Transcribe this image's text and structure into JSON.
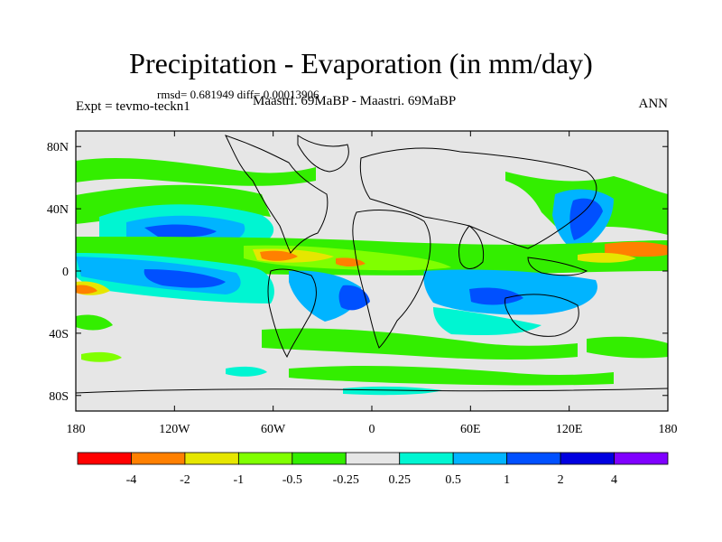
{
  "header": {
    "title": "Precipitation - Evaporation (in mm/day)",
    "stats": "rmsd= 0.681949 diff= 0.00013906",
    "experiment": "Expt = tevmo-teckn1",
    "comparison": "Maastri. 69MaBP - Maastri. 69MaBP",
    "season": "ANN"
  },
  "map": {
    "lon_range": [
      -180,
      180
    ],
    "lat_range": [
      -90,
      90
    ],
    "lat_ticks": [
      {
        "value": 80,
        "label": "80N"
      },
      {
        "value": 40,
        "label": "40N"
      },
      {
        "value": 0,
        "label": "0"
      },
      {
        "value": -40,
        "label": "40S"
      },
      {
        "value": -80,
        "label": "80S"
      }
    ],
    "lon_ticks": [
      {
        "value": -180,
        "label": "180"
      },
      {
        "value": -120,
        "label": "120W"
      },
      {
        "value": -60,
        "label": "60W"
      },
      {
        "value": 0,
        "label": "0"
      },
      {
        "value": 60,
        "label": "60E"
      },
      {
        "value": 120,
        "label": "120E"
      },
      {
        "value": 180,
        "label": "180"
      }
    ]
  },
  "colorbar": {
    "colors": [
      "#ff0000",
      "#ff8000",
      "#e6e600",
      "#80ff00",
      "#33ee00",
      "#e6e6e6",
      "#00f5d2",
      "#00b4ff",
      "#0050ff",
      "#0000e0",
      "#8000ff"
    ],
    "labels": [
      "-4",
      "-2",
      "-1",
      "-0.5",
      "-0.25",
      "0.25",
      "0.5",
      "1",
      "2",
      "4"
    ]
  }
}
